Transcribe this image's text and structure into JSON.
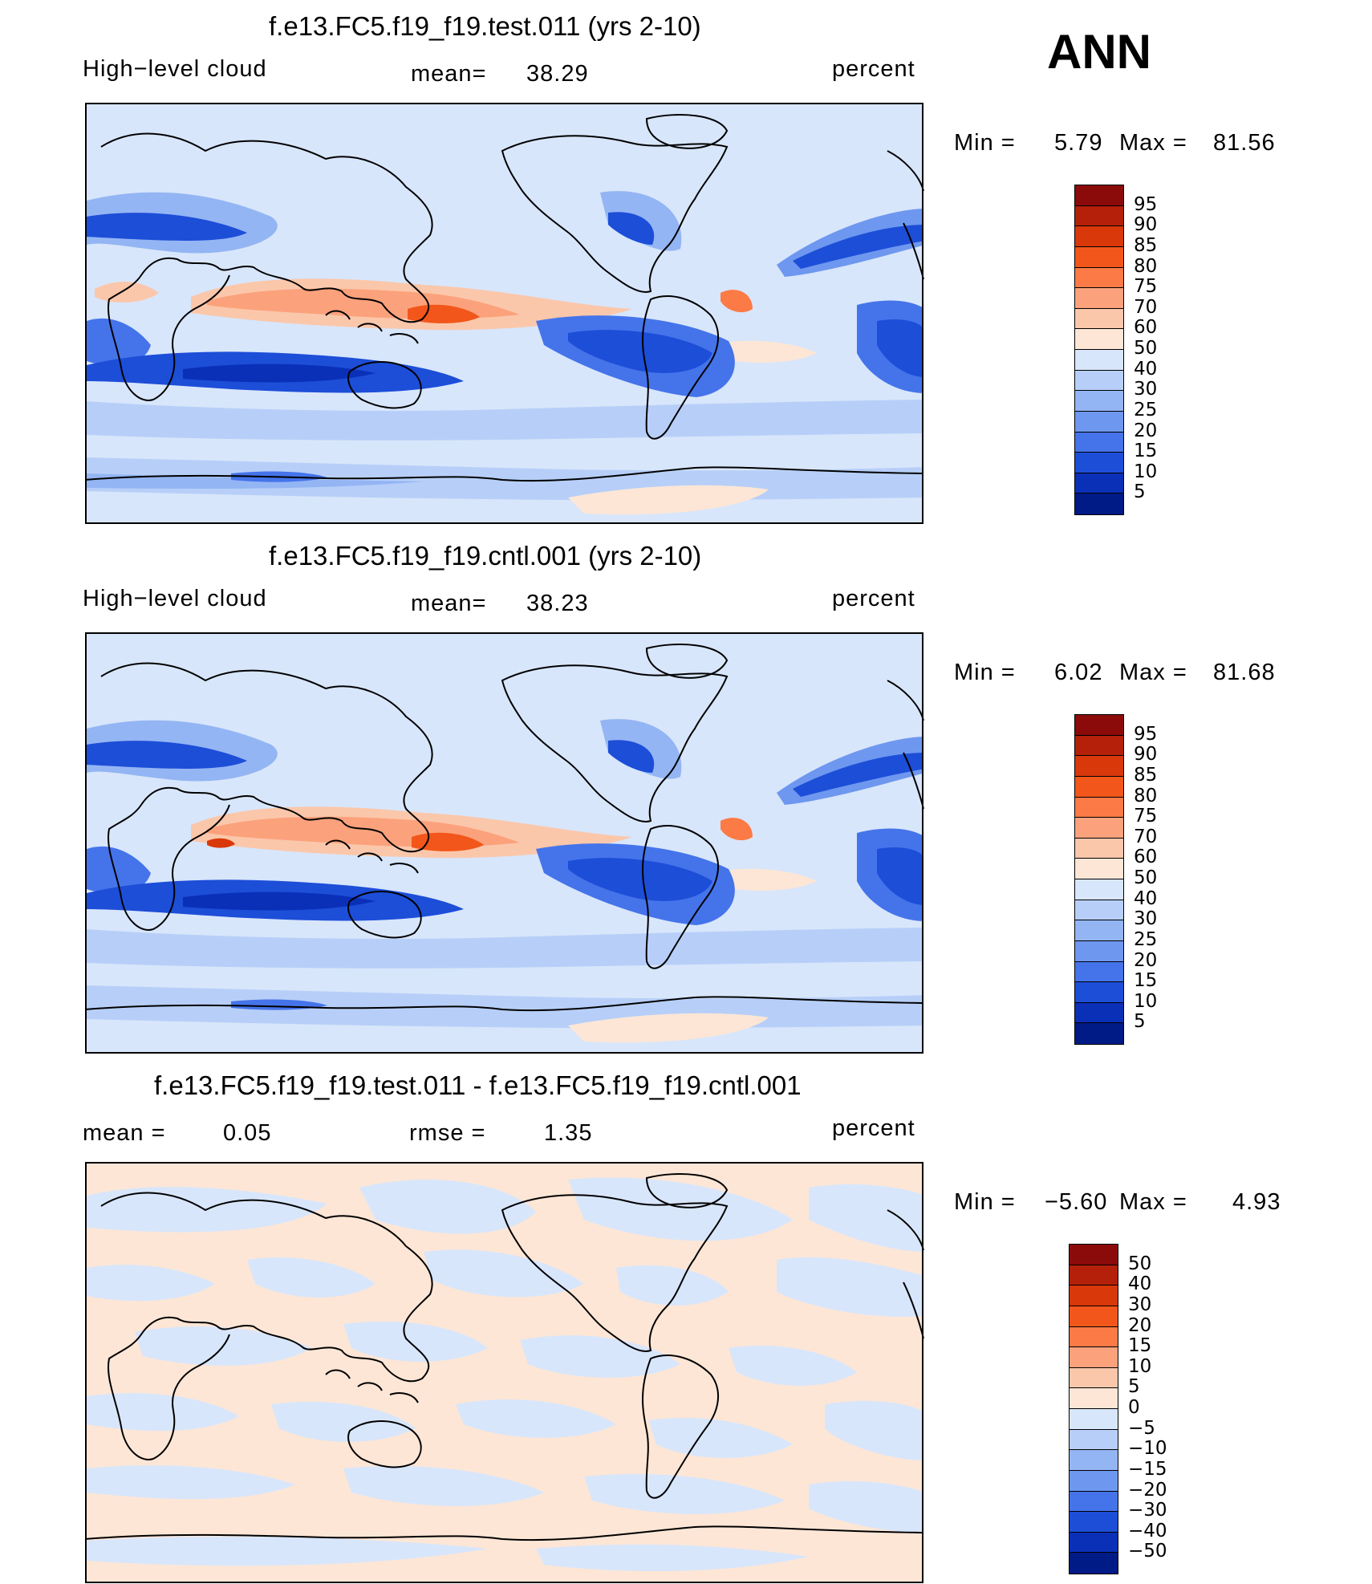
{
  "header": {
    "season": "ANN"
  },
  "panels": [
    {
      "title": "f.e13.FC5.f19_f19.test.011 (yrs 2-10)",
      "left_label": "High−level cloud",
      "mean_label": "mean=",
      "mean_value": "38.29",
      "units": "percent",
      "min_label": "Min =",
      "min_value": "5.79",
      "max_label": "Max =",
      "max_value": "81.56",
      "colorbar": {
        "levels": [
          "95",
          "90",
          "85",
          "80",
          "75",
          "70",
          "60",
          "50",
          "40",
          "30",
          "25",
          "20",
          "15",
          "10",
          "5"
        ],
        "colors": [
          "#8b0a0a",
          "#b5200a",
          "#d9380b",
          "#f2561b",
          "#fc7a45",
          "#fba27c",
          "#fbc7ab",
          "#fde6d6",
          "#d8e6fb",
          "#b7cff8",
          "#94b5f4",
          "#6e97ef",
          "#4574ea",
          "#1d4ed8",
          "#0a30b8",
          "#001a86"
        ]
      }
    },
    {
      "title": "f.e13.FC5.f19_f19.cntl.001 (yrs 2-10)",
      "left_label": "High−level cloud",
      "mean_label": "mean=",
      "mean_value": "38.23",
      "units": "percent",
      "min_label": "Min =",
      "min_value": "6.02",
      "max_label": "Max =",
      "max_value": "81.68",
      "colorbar": {
        "levels": [
          "95",
          "90",
          "85",
          "80",
          "75",
          "70",
          "60",
          "50",
          "40",
          "30",
          "25",
          "20",
          "15",
          "10",
          "5"
        ],
        "colors": [
          "#8b0a0a",
          "#b5200a",
          "#d9380b",
          "#f2561b",
          "#fc7a45",
          "#fba27c",
          "#fbc7ab",
          "#fde6d6",
          "#d8e6fb",
          "#b7cff8",
          "#94b5f4",
          "#6e97ef",
          "#4574ea",
          "#1d4ed8",
          "#0a30b8",
          "#001a86"
        ]
      }
    },
    {
      "title": "f.e13.FC5.f19_f19.test.011 - f.e13.FC5.f19_f19.cntl.001",
      "left_label": "mean =",
      "left_value": "0.05",
      "rmse_label": "rmse =",
      "rmse_value": "1.35",
      "units": "percent",
      "min_label": "Min =",
      "min_value": "−5.60",
      "max_label": "Max =",
      "max_value": "4.93",
      "colorbar": {
        "levels": [
          "50",
          "40",
          "30",
          "20",
          "15",
          "10",
          "5",
          "0",
          "−5",
          "−10",
          "−15",
          "−20",
          "−30",
          "−40",
          "−50"
        ],
        "colors": [
          "#8b0a0a",
          "#b5200a",
          "#d9380b",
          "#f2561b",
          "#fc7a45",
          "#fba27c",
          "#fbc7ab",
          "#fde6d6",
          "#d8e6fb",
          "#b7cff8",
          "#94b5f4",
          "#6e97ef",
          "#4574ea",
          "#1d4ed8",
          "#0a30b8",
          "#001a86"
        ]
      }
    }
  ]
}
